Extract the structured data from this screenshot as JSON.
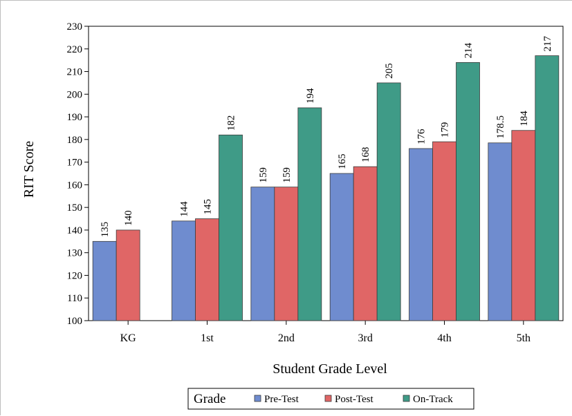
{
  "chart_data": {
    "type": "bar",
    "title": "",
    "xlabel": "Student Grade Level",
    "ylabel": "RIT Score",
    "ylim": [
      100,
      230
    ],
    "yticks": [
      100,
      110,
      120,
      130,
      140,
      150,
      160,
      170,
      180,
      190,
      200,
      210,
      220,
      230
    ],
    "categories": [
      "KG",
      "1st",
      "2nd",
      "3rd",
      "4th",
      "5th"
    ],
    "series": [
      {
        "name": "Pre-Test",
        "color": "#6f8ccf",
        "values": [
          135,
          144,
          159,
          165,
          176,
          178.5
        ],
        "labels": [
          "135",
          "144",
          "159",
          "165",
          "176",
          "178.5"
        ]
      },
      {
        "name": "Post-Test",
        "color": "#e06666",
        "values": [
          140,
          145,
          159,
          168,
          179,
          184
        ],
        "labels": [
          "140",
          "145",
          "159",
          "168",
          "179",
          "184"
        ]
      },
      {
        "name": "On-Track",
        "color": "#3f9b87",
        "values": [
          null,
          182,
          194,
          205,
          214,
          217
        ],
        "labels": [
          "",
          "182",
          "194",
          "205",
          "214",
          "217"
        ]
      }
    ],
    "grid": false,
    "legend": {
      "title": "Grade",
      "placement": "bottom-center"
    }
  }
}
